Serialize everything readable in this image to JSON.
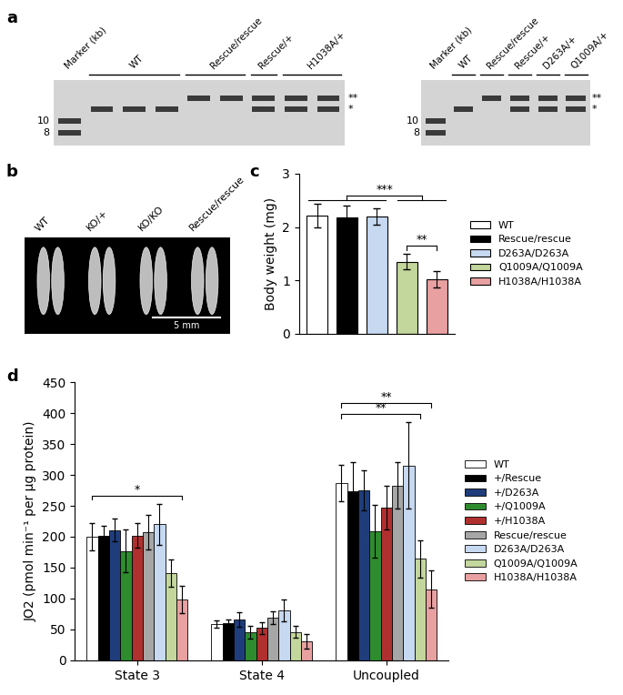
{
  "blots": {
    "panel": "a",
    "blots": [
      {
        "lanes": [
          {
            "label": "Marker (kb)",
            "count": 1,
            "bands": [
              "10",
              "8"
            ]
          },
          {
            "label": "WT",
            "count": 3,
            "bands": [
              "*"
            ]
          },
          {
            "label": "Rescue/rescue",
            "count": 2,
            "bands": [
              "**"
            ]
          },
          {
            "label": "Rescue/+",
            "count": 1,
            "bands": [
              "**",
              "*"
            ]
          },
          {
            "label": "H1038A/+",
            "count": 2,
            "bands": [
              "**",
              "*"
            ]
          }
        ],
        "size_markers": [
          "10",
          "8"
        ],
        "band_labels": [
          "**",
          "*"
        ]
      },
      {
        "lanes": [
          {
            "label": "Marker (kb)",
            "count": 1,
            "bands": [
              "10",
              "8"
            ]
          },
          {
            "label": "WT",
            "count": 1,
            "bands": [
              "*"
            ]
          },
          {
            "label": "Rescue/rescue",
            "count": 1,
            "bands": [
              "**"
            ]
          },
          {
            "label": "Rescue/+",
            "count": 1,
            "bands": [
              "**",
              "*"
            ]
          },
          {
            "label": "D263A/+",
            "count": 1,
            "bands": [
              "**",
              "*"
            ]
          },
          {
            "label": "Q1009A/+",
            "count": 1,
            "bands": [
              "**",
              "*"
            ]
          }
        ],
        "size_markers": [
          "10",
          "8"
        ],
        "band_labels": [
          "**",
          "*"
        ]
      }
    ]
  },
  "photo": {
    "panel": "b",
    "labels": [
      "WT",
      "KO/+",
      "KO/KO",
      "Rescue/rescue"
    ],
    "scale_bar": "5 mm"
  },
  "chart_data": [
    {
      "panel": "c",
      "type": "bar",
      "categories": [
        "WT",
        "Rescue/rescue",
        "D263A/D263A",
        "Q1009A/Q1009A",
        "H1038A/H1038A"
      ],
      "values": [
        2.22,
        2.18,
        2.2,
        1.35,
        1.02
      ],
      "errors": [
        0.22,
        0.22,
        0.15,
        0.15,
        0.15
      ],
      "colors": [
        "#ffffff",
        "#000000",
        "#c6d9f1",
        "#c3d69b",
        "#e8a0a0"
      ],
      "ylabel": "Body weight (mg)",
      "ylim": [
        0,
        3
      ],
      "yticks": [
        0,
        1,
        2,
        3
      ],
      "tick_labels": "y",
      "legend": "center left",
      "significance": [
        {
          "text": "***",
          "left": [
            "WT",
            "Rescue/rescue",
            "D263A/D263A"
          ],
          "right": [
            "Q1009A/Q1009A",
            "H1038A/H1038A"
          ]
        },
        {
          "text": "**",
          "left": [
            "Q1009A/Q1009A"
          ],
          "right": [
            "H1038A/H1038A"
          ]
        }
      ]
    },
    {
      "panel": "d",
      "type": "bar",
      "categories": [
        "State 3",
        "State 4",
        "Uncoupled"
      ],
      "series": [
        {
          "name": "WT",
          "color": "#ffffff",
          "values": [
            200,
            59,
            287
          ],
          "errors": [
            22,
            6,
            30
          ]
        },
        {
          "name": "+/Rescue",
          "color": "#000000",
          "values": [
            202,
            60,
            273
          ],
          "errors": [
            15,
            6,
            47
          ]
        },
        {
          "name": "+/D263A",
          "color": "#1f3d7a",
          "values": [
            211,
            66,
            275
          ],
          "errors": [
            18,
            12,
            32
          ]
        },
        {
          "name": "+/Q1009A",
          "color": "#2e8b2e",
          "values": [
            177,
            45,
            209
          ],
          "errors": [
            35,
            10,
            43
          ]
        },
        {
          "name": "+/H1038A",
          "color": "#b03030",
          "values": [
            202,
            52,
            247
          ],
          "errors": [
            20,
            10,
            35
          ]
        },
        {
          "name": "Rescue/rescue",
          "color": "#a6a6a6",
          "values": [
            208,
            69,
            283
          ],
          "errors": [
            28,
            10,
            38
          ]
        },
        {
          "name": "D263A/D263A",
          "color": "#c6d9f1",
          "values": [
            220,
            81,
            315
          ],
          "errors": [
            33,
            18,
            70
          ]
        },
        {
          "name": "Q1009A/Q1009A",
          "color": "#c3d69b",
          "values": [
            141,
            46,
            164
          ],
          "errors": [
            22,
            10,
            30
          ]
        },
        {
          "name": "H1038A/H1038A",
          "color": "#e8a0a0",
          "values": [
            98,
            31,
            115
          ],
          "errors": [
            22,
            12,
            30
          ]
        }
      ],
      "ylabel": "JO2 (pmol min⁻¹ per μg protein)",
      "ylim": [
        0,
        450
      ],
      "yticks": [
        0,
        50,
        100,
        150,
        200,
        250,
        300,
        350,
        400,
        450
      ],
      "legend": "center left",
      "significance": [
        {
          "text": "*",
          "category": "State 3",
          "from": "WT",
          "to": "H1038A/H1038A"
        },
        {
          "text": "**",
          "category": "Uncoupled",
          "from": "WT",
          "to": "Q1009A/Q1009A"
        },
        {
          "text": "**",
          "category": "Uncoupled",
          "from": "WT",
          "to": "H1038A/H1038A"
        }
      ]
    }
  ]
}
